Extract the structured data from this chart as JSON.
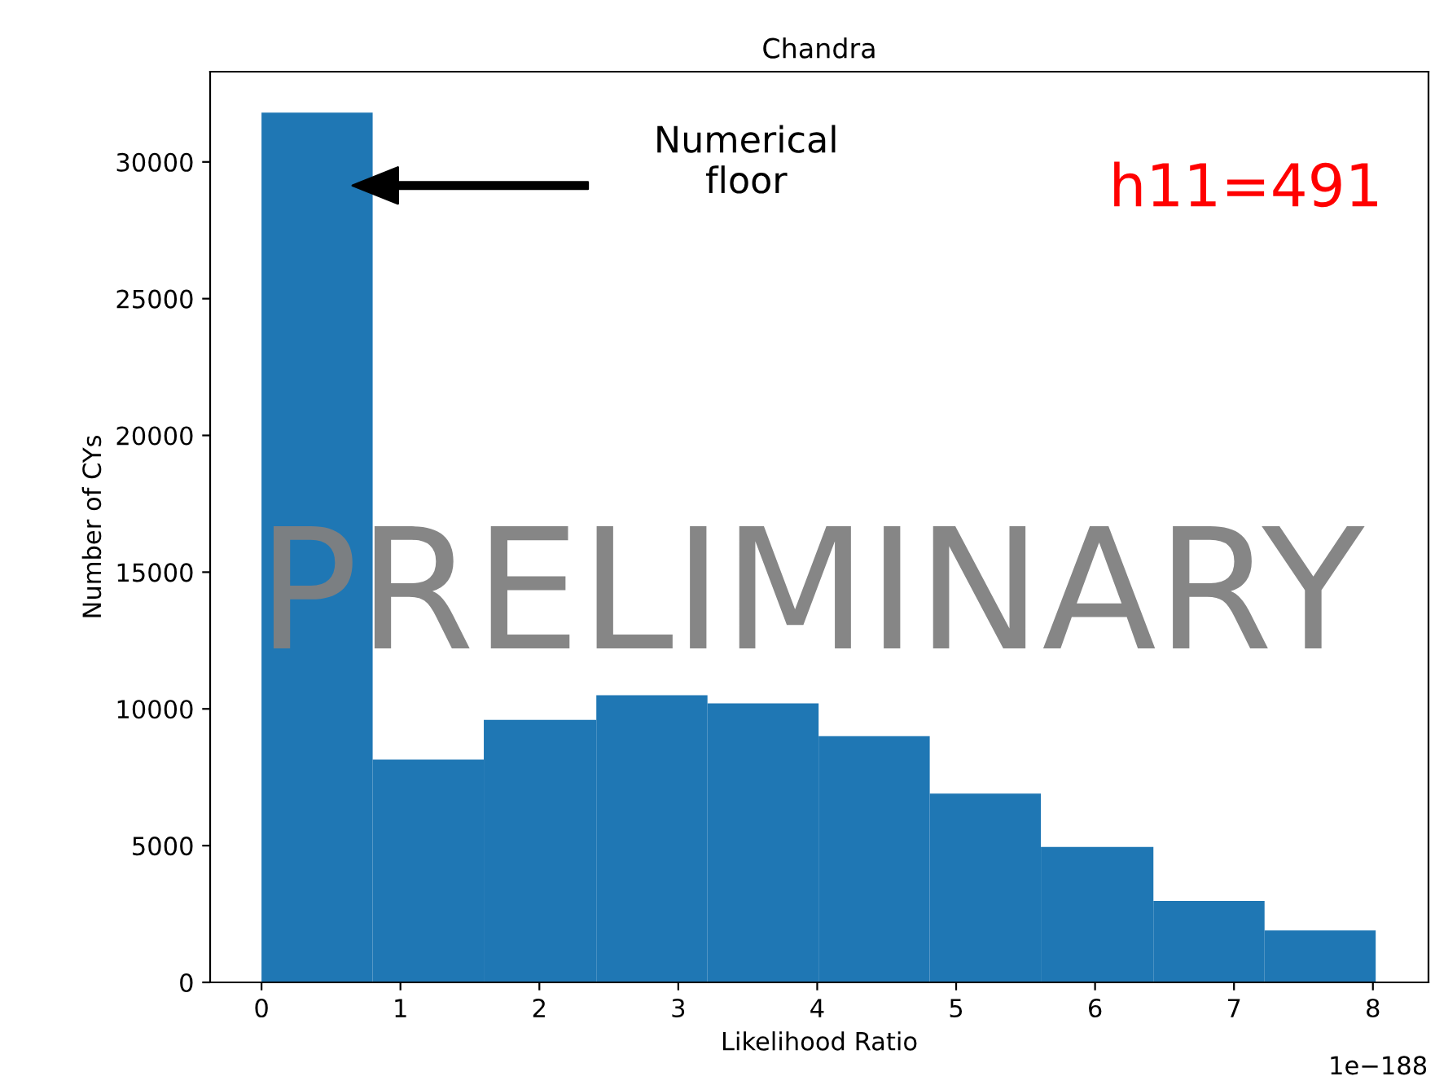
{
  "chart_data": {
    "type": "histogram",
    "title": "Chandra",
    "xlabel": "Likelihood Ratio",
    "ylabel": "Number of CYs",
    "bins": [
      0,
      0.8,
      1.6,
      2.41,
      3.21,
      4.01,
      4.81,
      5.61,
      6.42,
      7.22,
      8.02
    ],
    "values": [
      31800,
      8150,
      9600,
      10500,
      10200,
      9000,
      6900,
      4950,
      2980,
      1900
    ],
    "color": "#1f77b4",
    "xlim": [
      -0.37,
      8.4
    ],
    "xticks": [
      0,
      1,
      2,
      3,
      4,
      5,
      6,
      7,
      8
    ],
    "ylim": [
      0,
      33300
    ],
    "yticks": [
      0,
      5000,
      10000,
      15000,
      20000,
      25000,
      30000
    ],
    "grid": false,
    "legend": false,
    "annotations": [
      "Numerical\nfloor",
      "h11=491",
      "PRELIMINARY",
      "1e−188"
    ]
  }
}
